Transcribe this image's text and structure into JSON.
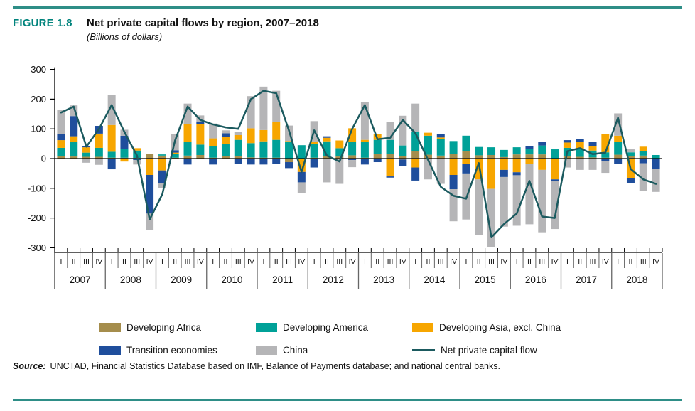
{
  "header": {
    "figure_label": "FIGURE 1.8",
    "title": "Net private capital flows by region, 2007–2018",
    "subtitle": "(Billions of dollars)"
  },
  "source": {
    "label": "Source:",
    "text": "UNCTAD, Financial Statistics Database based on IMF, Balance of Payments database; and national central banks."
  },
  "colors": {
    "accent_teal": "#00837c",
    "rule_teal": "#2e8e87",
    "axis_black": "#000000",
    "separator_gray": "#666666"
  },
  "chart_data": {
    "type": "bar",
    "stacked": true,
    "overlay": "line",
    "title": "Net private capital flows by region, 2007–2018",
    "subtitle": "(Billions of dollars)",
    "ylabel": "",
    "xlabel": "",
    "ylim": [
      -300,
      300
    ],
    "yticks": [
      300,
      200,
      100,
      0,
      -100,
      -200,
      -300
    ],
    "grid": false,
    "legend_position": "bottom",
    "years": [
      "2007",
      "2008",
      "2009",
      "2010",
      "2011",
      "2012",
      "2013",
      "2014",
      "2015",
      "2016",
      "2017",
      "2018"
    ],
    "quarter_labels": [
      "I",
      "II",
      "III",
      "IV"
    ],
    "series": [
      {
        "name": "Developing Africa",
        "color": "#a58d4c",
        "values": [
          8,
          7,
          6,
          6,
          3,
          3,
          2,
          15,
          10,
          3,
          10,
          12,
          3,
          8,
          8,
          4,
          3,
          3,
          -12,
          0,
          3,
          8,
          7,
          11,
          3,
          15,
          15,
          8,
          25,
          13,
          10,
          15,
          25,
          11,
          12,
          5,
          14,
          14,
          14,
          0,
          8,
          6,
          4,
          3,
          13,
          8,
          10,
          0
        ]
      },
      {
        "name": "Developing America",
        "color": "#00a198",
        "values": [
          28,
          48,
          14,
          30,
          20,
          30,
          25,
          0,
          4,
          12,
          45,
          35,
          40,
          40,
          55,
          48,
          55,
          60,
          56,
          45,
          45,
          50,
          28,
          45,
          52,
          48,
          48,
          36,
          64,
          64,
          56,
          44,
          52,
          28,
          26,
          24,
          24,
          18,
          30,
          31,
          28,
          26,
          23,
          18,
          44,
          13,
          16,
          12
        ]
      },
      {
        "name": "Developing Asia, excl. China",
        "color": "#f7a600",
        "values": [
          26,
          20,
          18,
          48,
          90,
          -10,
          8,
          -55,
          -40,
          5,
          60,
          70,
          25,
          25,
          16,
          50,
          38,
          60,
          3,
          -45,
          8,
          12,
          26,
          46,
          8,
          20,
          -60,
          -3,
          -30,
          10,
          5,
          -55,
          -18,
          -70,
          -102,
          -38,
          -46,
          -18,
          -38,
          -70,
          18,
          24,
          14,
          62,
          20,
          -65,
          14,
          0
        ]
      },
      {
        "name": "Transition economies",
        "color": "#1f4e9c",
        "values": [
          20,
          68,
          3,
          26,
          -36,
          44,
          -5,
          -130,
          -42,
          8,
          -20,
          8,
          -20,
          12,
          -18,
          -20,
          -20,
          -18,
          -20,
          -35,
          -30,
          5,
          0,
          -5,
          -20,
          -12,
          -4,
          -22,
          -44,
          0,
          12,
          -48,
          -32,
          0,
          0,
          -24,
          -10,
          10,
          12,
          -6,
          8,
          10,
          14,
          -8,
          -18,
          -18,
          -16,
          -34
        ]
      },
      {
        "name": "China",
        "color": "#b5b5b7",
        "values": [
          83,
          36,
          -14,
          -21,
          100,
          20,
          -15,
          -55,
          -18,
          55,
          70,
          20,
          50,
          10,
          10,
          108,
          146,
          105,
          52,
          -35,
          70,
          -80,
          -85,
          -24,
          128,
          0,
          60,
          100,
          96,
          -70,
          -85,
          -108,
          -155,
          -188,
          -195,
          -167,
          -170,
          -203,
          -210,
          -161,
          -30,
          -38,
          -38,
          -40,
          75,
          10,
          -92,
          -78
        ]
      }
    ],
    "line_series": {
      "name": "Net private capital flow",
      "color": "#1b5a5f",
      "values": [
        155,
        175,
        40,
        100,
        180,
        90,
        10,
        -205,
        -120,
        60,
        175,
        130,
        115,
        105,
        100,
        200,
        228,
        220,
        95,
        -45,
        95,
        10,
        -10,
        100,
        180,
        65,
        70,
        130,
        85,
        -5,
        -95,
        -125,
        -135,
        -15,
        -265,
        -220,
        -185,
        -75,
        -195,
        -200,
        25,
        35,
        15,
        20,
        137,
        -35,
        -70,
        -85
      ]
    }
  }
}
